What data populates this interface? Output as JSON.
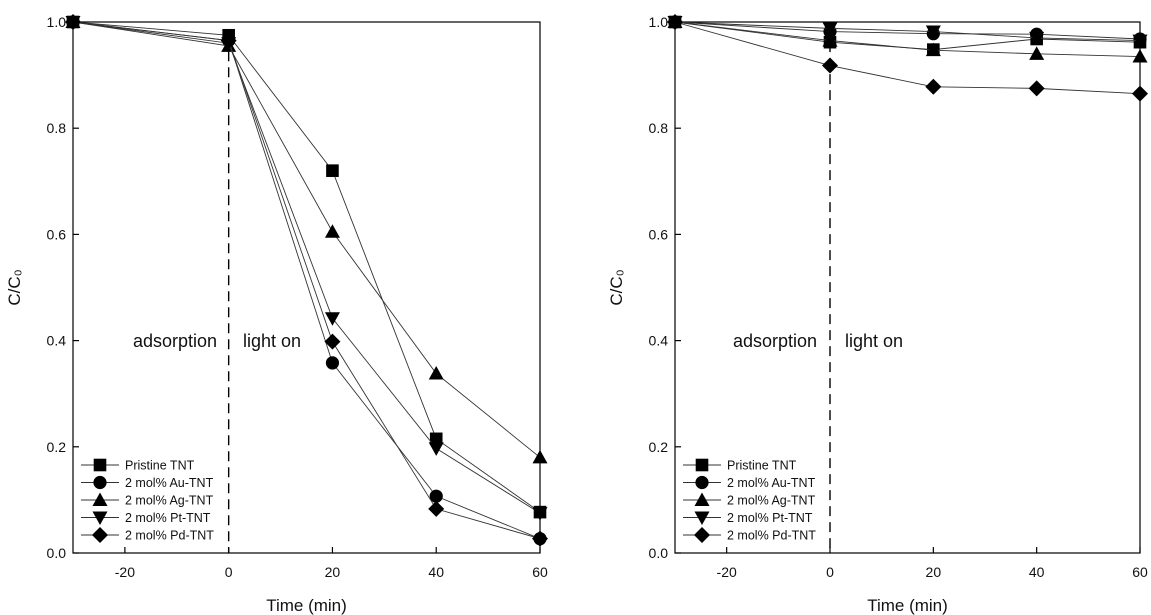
{
  "chart_data": [
    {
      "type": "line",
      "xlabel": "Time (min)",
      "ylabel": "C/C₀",
      "xlim": [
        -30,
        60
      ],
      "ylim": [
        0.0,
        1.0
      ],
      "xticks": [
        -20,
        0,
        20,
        40,
        60
      ],
      "yticks": [
        0.0,
        0.2,
        0.4,
        0.6,
        0.8,
        1.0
      ],
      "x": [
        -30,
        0,
        20,
        40,
        60
      ],
      "divider_x": 0,
      "annotations": [
        "adsorption",
        "light on"
      ],
      "legend_position": "bottom-left",
      "grid": false,
      "series": [
        {
          "name": "Pristine TNT",
          "marker": "square",
          "values": [
            1.0,
            0.975,
            0.72,
            0.215,
            0.077
          ]
        },
        {
          "name": "2 mol% Au-TNT",
          "marker": "circle",
          "values": [
            1.0,
            0.965,
            0.358,
            0.107,
            0.027
          ]
        },
        {
          "name": "2 mol% Ag-TNT",
          "marker": "triangle-up",
          "values": [
            1.0,
            0.955,
            0.605,
            0.338,
            0.18
          ]
        },
        {
          "name": "2 mol% Pt-TNT",
          "marker": "triangle-down",
          "values": [
            1.0,
            0.96,
            0.442,
            0.197,
            0.075
          ]
        },
        {
          "name": "2 mol% Pd-TNT",
          "marker": "diamond",
          "values": [
            1.0,
            0.965,
            0.398,
            0.083,
            0.027
          ]
        }
      ]
    },
    {
      "type": "line",
      "xlabel": "Time (min)",
      "ylabel": "C/C₀",
      "xlim": [
        -30,
        60
      ],
      "ylim": [
        0.0,
        1.0
      ],
      "xticks": [
        -20,
        0,
        20,
        40,
        60
      ],
      "yticks": [
        0.0,
        0.2,
        0.4,
        0.6,
        0.8,
        1.0
      ],
      "x": [
        -30,
        0,
        20,
        40,
        60
      ],
      "divider_x": 0,
      "annotations": [
        "adsorption",
        "light on"
      ],
      "legend_position": "bottom-left",
      "grid": false,
      "series": [
        {
          "name": "Pristine TNT",
          "marker": "square",
          "values": [
            1.0,
            0.962,
            0.948,
            0.968,
            0.962
          ]
        },
        {
          "name": "2 mol% Au-TNT",
          "marker": "circle",
          "values": [
            1.0,
            0.982,
            0.978,
            0.977,
            0.968
          ]
        },
        {
          "name": "2 mol% Ag-TNT",
          "marker": "triangle-up",
          "values": [
            1.0,
            0.965,
            0.947,
            0.94,
            0.935
          ]
        },
        {
          "name": "2 mol% Pt-TNT",
          "marker": "triangle-down",
          "values": [
            1.0,
            0.988,
            0.982,
            0.97,
            0.965
          ]
        },
        {
          "name": "2 mol% Pd-TNT",
          "marker": "diamond",
          "values": [
            1.0,
            0.918,
            0.878,
            0.875,
            0.865
          ]
        }
      ]
    }
  ]
}
